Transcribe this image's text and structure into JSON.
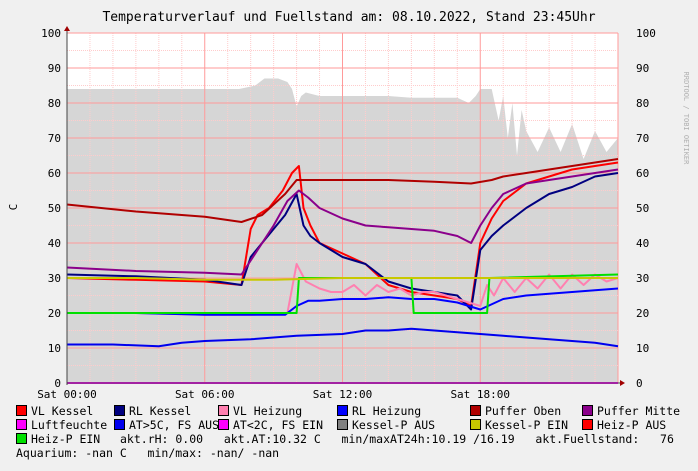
{
  "title": "Temperaturverlauf und Fuellstand am: 08.10.2022, Stand 23:45Uhr",
  "watermark": "RRDTOOL / TOBI OETIKER",
  "chart_data": {
    "type": "line",
    "ylabel": "C",
    "xlabel": "",
    "xlim": [
      0,
      24
    ],
    "ylim": [
      0,
      100
    ],
    "x_tick_labels": [
      {
        "x": 0,
        "label": "Sat 00:00"
      },
      {
        "x": 6,
        "label": "Sat 06:00"
      },
      {
        "x": 12,
        "label": "Sat 12:00"
      },
      {
        "x": 18,
        "label": "Sat 18:00"
      }
    ],
    "y_ticks": [
      0,
      10,
      20,
      30,
      40,
      50,
      60,
      70,
      80,
      90,
      100
    ],
    "grid": true,
    "area_series": {
      "name": "akt.Fuellstand",
      "color": "#d6d6d6",
      "x": [
        0,
        4,
        7.5,
        8.2,
        8.6,
        9.2,
        9.6,
        9.8,
        10,
        10.2,
        10.4,
        11,
        12,
        13,
        14,
        15,
        16,
        17,
        17.5,
        17.8,
        18,
        18.5,
        18.8,
        19,
        19.2,
        19.4,
        19.6,
        19.8,
        20,
        20.5,
        21,
        21.5,
        22,
        22.5,
        23,
        23.5,
        24
      ],
      "values": [
        84,
        84,
        84,
        85,
        87,
        87,
        86,
        84,
        79,
        82,
        83,
        82,
        82,
        82,
        82,
        81.5,
        81.5,
        81.5,
        80,
        82,
        84,
        84,
        75,
        82,
        70,
        80,
        65,
        78,
        72,
        66,
        73,
        66,
        74,
        64,
        72,
        66,
        70
      ]
    },
    "series": [
      {
        "name": "VL Kessel",
        "color": "#ff0000",
        "x": [
          0,
          3,
          6,
          7.6,
          8,
          8.3,
          8.8,
          9.4,
          9.8,
          10.1,
          10.3,
          10.6,
          11,
          12,
          13,
          14,
          15,
          16,
          17,
          17.6,
          18,
          18.5,
          19,
          20,
          21,
          22,
          23,
          24
        ],
        "values": [
          30,
          29.5,
          29,
          28,
          44,
          48,
          50,
          55,
          60,
          62,
          50,
          45,
          40,
          37,
          34,
          28,
          26,
          25,
          24,
          22,
          40,
          47,
          52,
          57,
          59,
          61,
          62,
          63
        ]
      },
      {
        "name": "RL Kessel",
        "color": "#000080",
        "x": [
          0,
          3,
          6,
          7.6,
          8,
          8.5,
          9,
          9.5,
          10,
          10.3,
          10.6,
          11,
          12,
          13,
          14,
          15,
          16,
          17,
          17.6,
          18,
          18.5,
          19,
          20,
          21,
          22,
          23,
          24
        ],
        "values": [
          31,
          30.5,
          29.5,
          28,
          36,
          40,
          44,
          48,
          54,
          45,
          42,
          40,
          36,
          34,
          29,
          27,
          26,
          25,
          21,
          38,
          42,
          45,
          50,
          54,
          56,
          59,
          60
        ]
      },
      {
        "name": "VL Heizung",
        "color": "#ff80b0",
        "x": [
          0,
          3,
          6,
          8,
          9.6,
          10,
          10.4,
          11,
          11.5,
          12,
          12.5,
          13,
          13.5,
          14,
          14.5,
          15,
          15.5,
          16,
          16.5,
          17,
          17.5,
          18,
          18.3,
          18.6,
          19,
          19.5,
          20,
          20.5,
          21,
          21.5,
          22,
          22.5,
          23,
          23.5,
          24
        ],
        "values": [
          20,
          20,
          19.5,
          19.5,
          20,
          34,
          29,
          27,
          26,
          26,
          28,
          25,
          28,
          26,
          27,
          25,
          26,
          26,
          25,
          24,
          23,
          22,
          28,
          25,
          30,
          26,
          30,
          27,
          31,
          27,
          31,
          28,
          31,
          29,
          30
        ]
      },
      {
        "name": "RL Heizung",
        "color": "#0000ff",
        "x": [
          0,
          3,
          6,
          8,
          9.5,
          10,
          10.5,
          11,
          12,
          13,
          14,
          15,
          16,
          17,
          17.5,
          18,
          19,
          20,
          21,
          22,
          23,
          24
        ],
        "values": [
          20,
          20,
          19.5,
          19.5,
          19.5,
          22,
          23.5,
          23.5,
          24,
          24,
          24.5,
          24,
          24,
          23,
          22,
          21,
          24,
          25,
          25.5,
          26,
          26.5,
          27
        ]
      },
      {
        "name": "Puffer Oben",
        "color": "#b00000",
        "x": [
          0,
          3,
          6,
          7.6,
          8.5,
          9.5,
          10,
          12,
          14,
          16,
          17.6,
          18.5,
          19,
          20,
          21,
          22,
          23,
          24
        ],
        "values": [
          51,
          49,
          47.5,
          46,
          48,
          54,
          58,
          58,
          58,
          57.5,
          57,
          58,
          59,
          60,
          61,
          62,
          63,
          64
        ]
      },
      {
        "name": "Puffer Mitte",
        "color": "#8b008b",
        "x": [
          0,
          3,
          6,
          7.6,
          8.3,
          9,
          9.6,
          10.1,
          10.5,
          11,
          12,
          13,
          14,
          15,
          16,
          17,
          17.6,
          18,
          18.5,
          19,
          20,
          21,
          22,
          23,
          24
        ],
        "values": [
          33,
          32,
          31.5,
          31,
          38,
          45,
          52,
          55,
          53,
          50,
          47,
          45,
          44.5,
          44,
          43.5,
          42,
          40,
          45,
          50,
          54,
          57,
          58,
          59,
          60,
          61
        ]
      },
      {
        "name": "Luftfeuchte",
        "color": "#ff00ff",
        "x": [
          0,
          24
        ],
        "values": [
          0,
          0
        ]
      },
      {
        "name": "AT>5C, FS AUS",
        "color": "#0000ee",
        "x": [
          0,
          2,
          4,
          5,
          6,
          8,
          10,
          12,
          13,
          14,
          15,
          16,
          17,
          18,
          19,
          20,
          21,
          22,
          23,
          24
        ],
        "values": [
          11,
          11,
          10.5,
          11.5,
          12,
          12.5,
          13.5,
          14,
          15,
          15,
          15.5,
          15,
          14.5,
          14,
          13.5,
          13,
          12.5,
          12,
          11.5,
          10.5
        ]
      },
      {
        "name": "Heiz-P EIN",
        "color": "#00e000",
        "x": [
          0,
          9.9,
          10,
          10.1,
          14.9,
          15.0,
          15.1,
          18.2,
          18.3,
          18.4,
          24
        ],
        "values": [
          20,
          20,
          20,
          30,
          30,
          30,
          20,
          20,
          20,
          30,
          31
        ]
      },
      {
        "name": "Kessel-P EIN",
        "color": "#c8c800",
        "x": [
          0,
          3,
          6,
          9,
          12,
          15,
          18,
          21,
          24
        ],
        "values": [
          30,
          30,
          29.5,
          29.5,
          30,
          30,
          30,
          30,
          30
        ]
      }
    ]
  },
  "legend": {
    "rows": [
      [
        {
          "label": "VL Kessel",
          "color": "#ff0000"
        },
        {
          "label": "RL Kessel",
          "color": "#000080"
        },
        {
          "label": "VL Heizung",
          "color": "#ff80b0"
        },
        {
          "label": "RL Heizung",
          "color": "#0000ff"
        },
        {
          "label": "Puffer Oben",
          "color": "#b00000"
        },
        {
          "label": "Puffer Mitte",
          "color": "#8b008b"
        }
      ],
      [
        {
          "label": "Luftfeuchte",
          "color": "#ff00ff"
        },
        {
          "label": "AT>5C, FS AUS",
          "color": "#0000ee"
        },
        {
          "label": "AT<2C, FS EIN",
          "color": "#ff00ff"
        },
        {
          "label": "Kessel-P AUS",
          "color": "#808080"
        },
        {
          "label": "Kessel-P EIN",
          "color": "#c8c800"
        },
        {
          "label": "Heiz-P AUS",
          "color": "#ff0000"
        }
      ]
    ],
    "heiz_p_ein": {
      "label": "Heiz-P EIN",
      "color": "#00e000"
    },
    "info_line_1": "akt.rH: 0.00   akt.AT:10.32 C   min/maxAT24h:10.19 /16.19   akt.Fuellstand:   76",
    "info_line_2": "Aquarium: -nan C   min/max: -nan/ -nan"
  }
}
